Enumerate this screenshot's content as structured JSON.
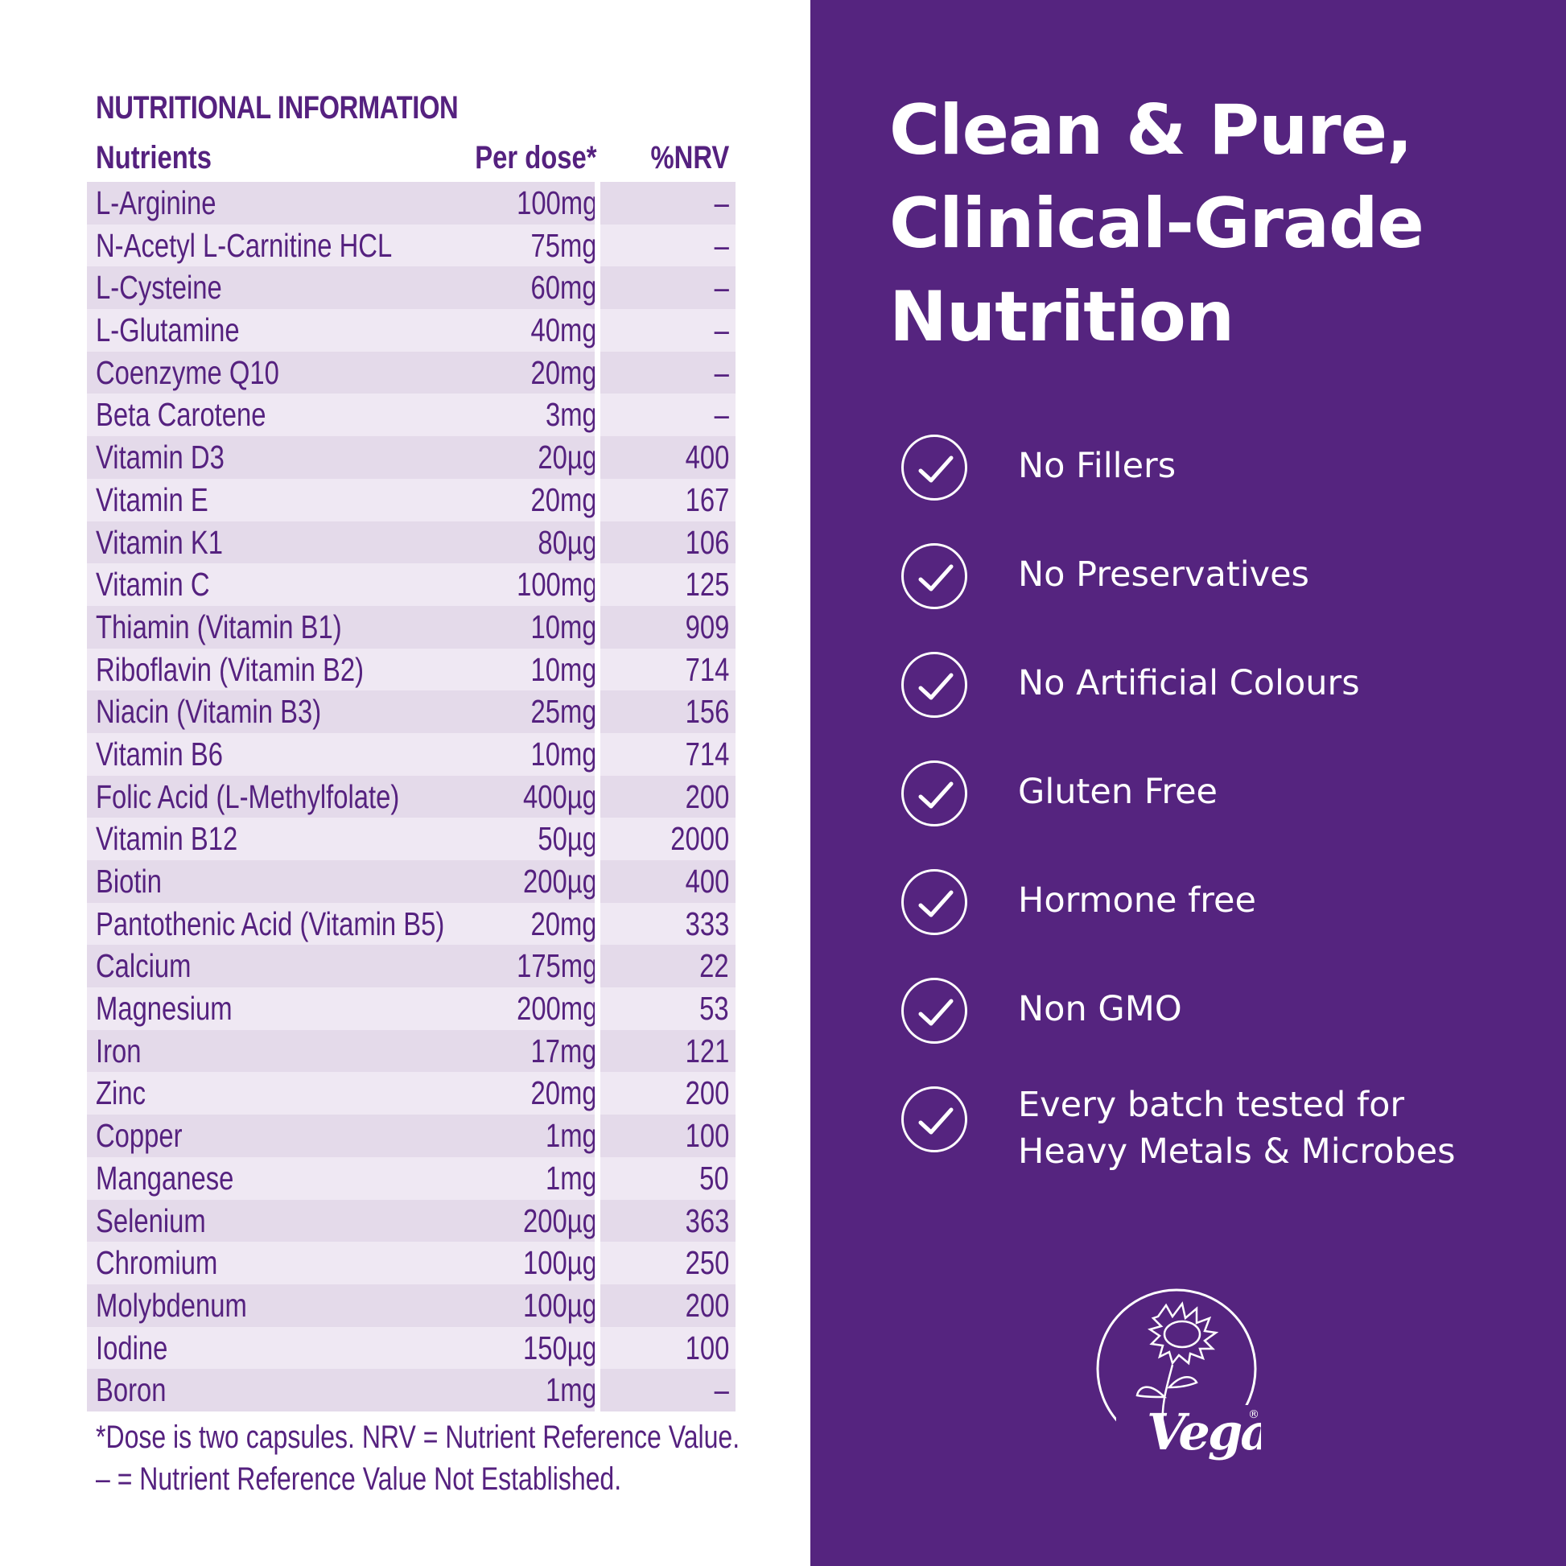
{
  "nutrition": {
    "title": "NUTRITIONAL INFORMATION",
    "headers": {
      "name": "Nutrients",
      "dose": "Per dose*",
      "nrv": "%NRV"
    },
    "rows": [
      {
        "name": "L-Arginine",
        "dose": "100mg",
        "nrv": "–"
      },
      {
        "name": "N-Acetyl L-Carnitine HCL",
        "dose": "75mg",
        "nrv": "–"
      },
      {
        "name": "L-Cysteine",
        "dose": "60mg",
        "nrv": "–"
      },
      {
        "name": "L-Glutamine",
        "dose": "40mg",
        "nrv": "–"
      },
      {
        "name": "Coenzyme Q10",
        "dose": "20mg",
        "nrv": "–"
      },
      {
        "name": "Beta Carotene",
        "dose": "3mg",
        "nrv": "–"
      },
      {
        "name": "Vitamin D3",
        "dose": "20µg",
        "nrv": "400"
      },
      {
        "name": "Vitamin E",
        "dose": "20mg",
        "nrv": "167"
      },
      {
        "name": "Vitamin K1",
        "dose": "80µg",
        "nrv": "106"
      },
      {
        "name": "Vitamin C",
        "dose": "100mg",
        "nrv": "125"
      },
      {
        "name": "Thiamin (Vitamin B1)",
        "dose": "10mg",
        "nrv": "909"
      },
      {
        "name": "Riboflavin (Vitamin B2)",
        "dose": "10mg",
        "nrv": "714"
      },
      {
        "name": "Niacin (Vitamin B3)",
        "dose": "25mg",
        "nrv": "156"
      },
      {
        "name": "Vitamin B6",
        "dose": "10mg",
        "nrv": "714"
      },
      {
        "name": "Folic Acid (L-Methylfolate)",
        "dose": "400µg",
        "nrv": "200"
      },
      {
        "name": "Vitamin B12",
        "dose": "50µg",
        "nrv": "2000"
      },
      {
        "name": "Biotin",
        "dose": "200µg",
        "nrv": "400"
      },
      {
        "name": "Pantothenic Acid (Vitamin B5)",
        "dose": "20mg",
        "nrv": "333"
      },
      {
        "name": "Calcium",
        "dose": "175mg",
        "nrv": "22"
      },
      {
        "name": "Magnesium",
        "dose": "200mg",
        "nrv": "53"
      },
      {
        "name": "Iron",
        "dose": "17mg",
        "nrv": "121"
      },
      {
        "name": "Zinc",
        "dose": "20mg",
        "nrv": "200"
      },
      {
        "name": "Copper",
        "dose": "1mg",
        "nrv": "100"
      },
      {
        "name": "Manganese",
        "dose": "1mg",
        "nrv": "50"
      },
      {
        "name": "Selenium",
        "dose": "200µg",
        "nrv": "363"
      },
      {
        "name": "Chromium",
        "dose": "100µg",
        "nrv": "250"
      },
      {
        "name": "Molybdenum",
        "dose": "100µg",
        "nrv": "200"
      },
      {
        "name": "Iodine",
        "dose": "150µg",
        "nrv": "100"
      },
      {
        "name": "Boron",
        "dose": "1mg",
        "nrv": "–"
      }
    ],
    "footnote_1": "*Dose is two capsules. NRV = Nutrient Reference Value.",
    "footnote_2": "– = Nutrient Reference Value Not Established."
  },
  "headline": {
    "line_1": "Clean & Pure,",
    "line_2": "Clinical-Grade",
    "line_3": "Nutrition"
  },
  "features": [
    {
      "icon": "check-circle-icon",
      "lines": [
        "No Fillers"
      ]
    },
    {
      "icon": "check-circle-icon",
      "lines": [
        "No Preservatives"
      ]
    },
    {
      "icon": "check-circle-icon",
      "lines": [
        "No Artificial Colours"
      ]
    },
    {
      "icon": "check-circle-icon",
      "lines": [
        "Gluten Free"
      ]
    },
    {
      "icon": "check-circle-icon",
      "lines": [
        "Hormone free"
      ]
    },
    {
      "icon": "check-circle-icon",
      "lines": [
        "Non GMO"
      ]
    },
    {
      "icon": "check-circle-icon",
      "lines": [
        "Every batch tested for",
        "Heavy Metals & Microbes"
      ]
    }
  ],
  "vegan_logo": {
    "text": "Vegan",
    "mark": "®"
  },
  "colors": {
    "brand_purple": "#55247f",
    "text_purple": "#55217f",
    "row_odd": "#e4daea",
    "row_even": "#efe8f3",
    "white": "#ffffff"
  }
}
